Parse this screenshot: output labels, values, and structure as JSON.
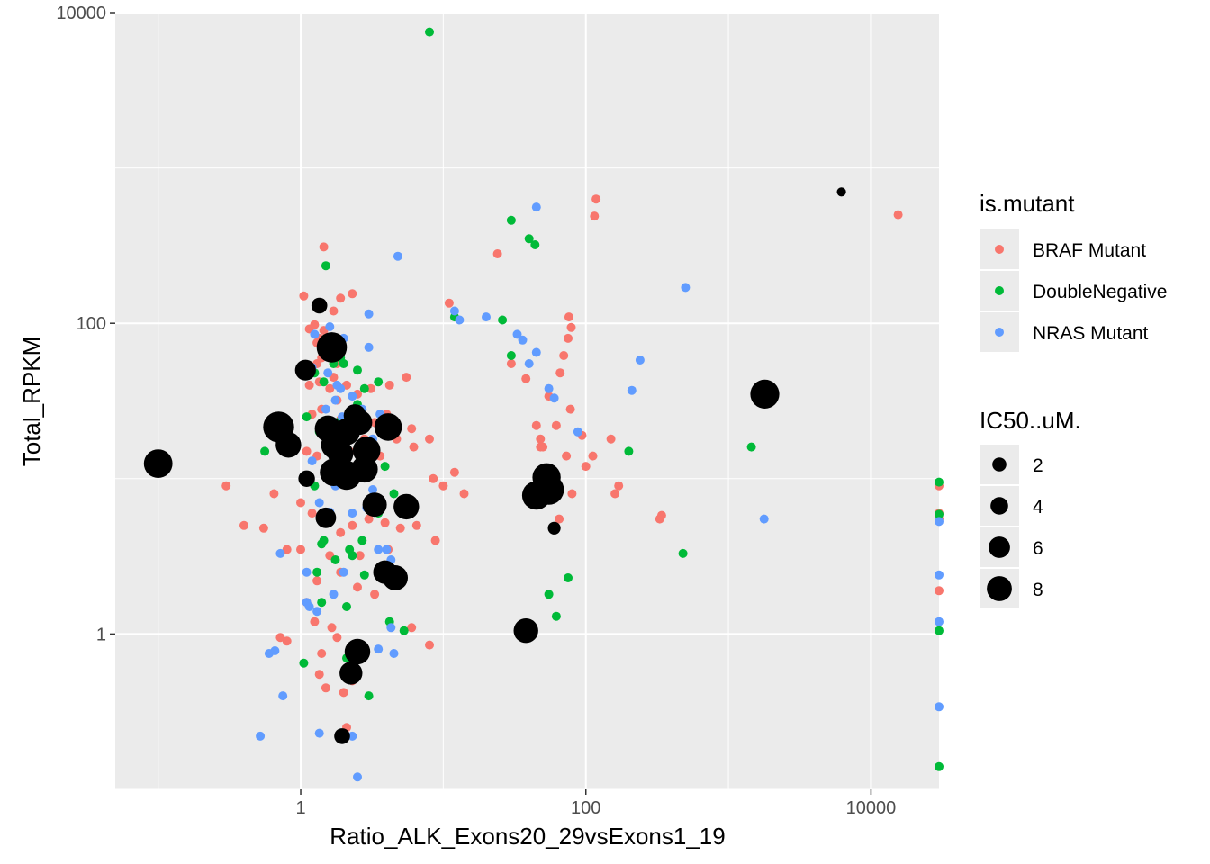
{
  "chart_data": {
    "type": "scatter",
    "xlabel": "Ratio_ALK_Exons20_29vsExons1_19",
    "ylabel": "Total_RPKM",
    "x_scale": "log10",
    "y_scale": "log10",
    "xlim": [
      0.05,
      30000
    ],
    "ylim": [
      0.1,
      10000
    ],
    "x_ticks": [
      1,
      100,
      10000
    ],
    "x_tick_labels": [
      "1",
      "100",
      "10000"
    ],
    "y_ticks": [
      1,
      100,
      10000
    ],
    "y_tick_labels": [
      "1",
      "100",
      "10000"
    ],
    "grid": true,
    "panel_background": "#ebebeb",
    "legend_position": "right",
    "colors": {
      "BRAF Mutant": "#f8766d",
      "DoubleNegative": "#00ba38",
      "NRAS Mutant": "#619cff",
      "IC50": "#000000"
    },
    "legend": {
      "color_title": "is.mutant",
      "color_entries": [
        "BRAF Mutant",
        "DoubleNegative",
        "NRAS Mutant"
      ],
      "size_title": "IC50..uM.",
      "size_entries": [
        2,
        4,
        6,
        8
      ]
    },
    "series": [
      {
        "name": "BRAF Mutant",
        "points": [
          [
            1.45,
            310
          ],
          [
            1.35,
            80
          ],
          [
            1.05,
            150
          ],
          [
            1.3,
            55
          ],
          [
            1.6,
            70
          ],
          [
            1.9,
            145
          ],
          [
            2.3,
            155
          ],
          [
            1.15,
            40
          ],
          [
            1.35,
            42
          ],
          [
            1.7,
            45
          ],
          [
            2.1,
            40
          ],
          [
            2.5,
            35
          ],
          [
            3.1,
            38
          ],
          [
            4.2,
            40
          ],
          [
            5.5,
            45
          ],
          [
            1.2,
            26
          ],
          [
            1.4,
            28
          ],
          [
            1.8,
            32
          ],
          [
            2.4,
            26
          ],
          [
            3.3,
            23
          ],
          [
            4.0,
            26
          ],
          [
            6.0,
            21
          ],
          [
            8.0,
            18
          ],
          [
            1.1,
            15
          ],
          [
            1.3,
            14
          ],
          [
            1.7,
            13
          ],
          [
            2.2,
            15
          ],
          [
            2.8,
            18
          ],
          [
            3.6,
            14
          ],
          [
            4.7,
            18
          ],
          [
            6.2,
            16
          ],
          [
            8.5,
            10
          ],
          [
            10,
            9
          ],
          [
            12,
            11
          ],
          [
            14,
            8
          ],
          [
            1.0,
            7
          ],
          [
            1.2,
            6
          ],
          [
            1.5,
            5.5
          ],
          [
            1.9,
            4.5
          ],
          [
            2.3,
            5
          ],
          [
            3.0,
            5.5
          ],
          [
            3.9,
            5.2
          ],
          [
            5.0,
            4.8
          ],
          [
            6.5,
            5
          ],
          [
            8.8,
            4
          ],
          [
            0.3,
            9
          ],
          [
            0.4,
            5
          ],
          [
            0.55,
            4.8
          ],
          [
            0.65,
            8
          ],
          [
            0.8,
            3.5
          ],
          [
            1.0,
            3.5
          ],
          [
            1.3,
            2.2
          ],
          [
            1.6,
            3.2
          ],
          [
            1.9,
            2.5
          ],
          [
            2.6,
            3.2
          ],
          [
            3.5,
            2.5
          ],
          [
            4.1,
            3.5
          ],
          [
            1.1,
            1.6
          ],
          [
            1.25,
            1.2
          ],
          [
            1.8,
            0.95
          ],
          [
            0.72,
            0.95
          ],
          [
            0.8,
            0.9
          ],
          [
            1.4,
            0.75
          ],
          [
            1.65,
            1.1
          ],
          [
            2.5,
            2.0
          ],
          [
            3.3,
            1.8
          ],
          [
            4.8,
            2.2
          ],
          [
            6.0,
            1.1
          ],
          [
            8.0,
            0.85
          ],
          [
            1.35,
            0.55
          ],
          [
            2.0,
            0.42
          ],
          [
            2.1,
            0.25
          ],
          [
            2.3,
            0.5
          ],
          [
            1.5,
            0.45
          ],
          [
            11,
            135
          ],
          [
            24,
            280
          ],
          [
            30,
            55
          ],
          [
            38,
            44
          ],
          [
            45,
            22
          ],
          [
            48,
            18
          ],
          [
            50,
            16
          ],
          [
            55,
            34
          ],
          [
            62,
            22
          ],
          [
            66,
            48
          ],
          [
            70,
            62
          ],
          [
            75,
            80
          ],
          [
            80,
            8
          ],
          [
            94,
            19
          ],
          [
            100,
            12
          ],
          [
            112,
            14
          ],
          [
            76,
            110
          ],
          [
            79,
            94
          ],
          [
            78,
            28
          ],
          [
            65,
            5.5
          ],
          [
            73,
            14
          ],
          [
            48,
            16
          ],
          [
            150,
            18
          ],
          [
            160,
            8
          ],
          [
            170,
            9
          ],
          [
            115,
            490
          ],
          [
            118,
            630
          ],
          [
            330,
            5.5
          ],
          [
            340,
            5.8
          ],
          [
            15500,
            500
          ],
          [
            30000,
            9
          ],
          [
            30000,
            6
          ],
          [
            30000,
            5.5
          ],
          [
            30000,
            1.9
          ],
          [
            1.45,
            90
          ],
          [
            1.3,
            75
          ],
          [
            1.7,
            120
          ],
          [
            1.9,
            24
          ],
          [
            2.4,
            11
          ],
          [
            1.15,
            92
          ],
          [
            1.25,
            98
          ],
          [
            1.4,
            60
          ],
          [
            1.6,
            38
          ],
          [
            1.8,
            55
          ],
          [
            2.2,
            22
          ]
        ]
      },
      {
        "name": "DoubleNegative",
        "points": [
          [
            8,
            7500
          ],
          [
            30,
            460
          ],
          [
            44,
            320
          ],
          [
            1.5,
            235
          ],
          [
            1.25,
            48
          ],
          [
            1.45,
            42
          ],
          [
            1.7,
            55
          ],
          [
            1.9,
            60
          ],
          [
            2.5,
            50
          ],
          [
            2.8,
            38
          ],
          [
            3.5,
            42
          ],
          [
            1.35,
            20
          ],
          [
            1.6,
            22
          ],
          [
            1.9,
            17
          ],
          [
            2.2,
            22
          ],
          [
            2.6,
            13
          ],
          [
            3.1,
            13
          ],
          [
            3.9,
            12
          ],
          [
            1.1,
            25
          ],
          [
            1.25,
            9
          ],
          [
            1.45,
            4
          ],
          [
            1.75,
            3
          ],
          [
            2.2,
            3.5
          ],
          [
            2.7,
            4
          ],
          [
            3.5,
            6
          ],
          [
            4.5,
            8
          ],
          [
            1.4,
            3.8
          ],
          [
            1.3,
            2.5
          ],
          [
            1.05,
            0.65
          ],
          [
            1.4,
            1.6
          ],
          [
            2.1,
            1.5
          ],
          [
            2.3,
            3.2
          ],
          [
            2.8,
            2.4
          ],
          [
            3.5,
            2.5
          ],
          [
            4.2,
            1.2
          ],
          [
            5.3,
            1.05
          ],
          [
            12,
            110
          ],
          [
            26,
            105
          ],
          [
            30,
            62
          ],
          [
            40,
            350
          ],
          [
            45,
            7.8
          ],
          [
            55,
            1.8
          ],
          [
            62,
            1.3
          ],
          [
            75,
            2.3
          ],
          [
            200,
            15
          ],
          [
            480,
            3.3
          ],
          [
            1450,
            16
          ],
          [
            30000,
            9.5
          ],
          [
            30000,
            5.9
          ],
          [
            30000,
            1.05
          ],
          [
            30000,
            0.14
          ],
          [
            2.0,
            55
          ],
          [
            2.5,
            30
          ],
          [
            3.0,
            12
          ],
          [
            1.8,
            23
          ],
          [
            3.0,
            0.4
          ],
          [
            2.1,
            0.7
          ],
          [
            2.7,
            17
          ],
          [
            0.56,
            15
          ],
          [
            1.55,
            21
          ]
        ]
      },
      {
        "name": "NRAS Mutant",
        "points": [
          [
            45,
            560
          ],
          [
            4.8,
            270
          ],
          [
            3.0,
            115
          ],
          [
            1.25,
            85
          ],
          [
            1.6,
            95
          ],
          [
            2.0,
            80
          ],
          [
            3.0,
            70
          ],
          [
            1.45,
            65
          ],
          [
            1.8,
            40
          ],
          [
            2.3,
            34
          ],
          [
            2.7,
            28
          ],
          [
            1.2,
            52
          ],
          [
            1.55,
            48
          ],
          [
            1.9,
            38
          ],
          [
            2.3,
            22
          ],
          [
            3.2,
            18
          ],
          [
            3.6,
            26
          ],
          [
            1.5,
            28
          ],
          [
            1.95,
            25
          ],
          [
            1.75,
            9
          ],
          [
            2.3,
            6
          ],
          [
            2.9,
            6.5
          ],
          [
            2.5,
            12
          ],
          [
            3.0,
            13
          ],
          [
            1.7,
            1.8
          ],
          [
            2.0,
            2.5
          ],
          [
            3.5,
            3.5
          ],
          [
            4.3,
            1.1
          ],
          [
            1.1,
            1.6
          ],
          [
            1.15,
            1.5
          ],
          [
            1.3,
            1.4
          ],
          [
            0.6,
            0.75
          ],
          [
            0.66,
            0.78
          ],
          [
            0.75,
            0.4
          ],
          [
            0.52,
            0.22
          ],
          [
            1.35,
            0.23
          ],
          [
            2.3,
            0.22
          ],
          [
            2.5,
            0.12
          ],
          [
            3.5,
            0.8
          ],
          [
            4.0,
            3.5
          ],
          [
            4.5,
            0.75
          ],
          [
            12,
            120
          ],
          [
            13,
            105
          ],
          [
            20,
            110
          ],
          [
            33,
            85
          ],
          [
            36,
            78
          ],
          [
            40,
            55
          ],
          [
            45,
            65
          ],
          [
            55,
            38
          ],
          [
            60,
            33
          ],
          [
            88,
            20
          ],
          [
            240,
            58
          ],
          [
            210,
            37
          ],
          [
            500,
            170
          ],
          [
            1780,
            5.5
          ],
          [
            30000,
            5.3
          ],
          [
            30000,
            2.4
          ],
          [
            30000,
            1.2
          ],
          [
            30000,
            0.34
          ],
          [
            0.72,
            3.3
          ],
          [
            1.1,
            2.5
          ],
          [
            1.4,
            5.3
          ],
          [
            1.6,
            6.1
          ],
          [
            1.2,
            13
          ],
          [
            1.35,
            7
          ],
          [
            1.75,
            32
          ],
          [
            2.4,
            27
          ],
          [
            3.2,
            8.5
          ],
          [
            4.3,
            3.0
          ]
        ]
      },
      {
        "name": "IC50",
        "points": [
          [
            0.1,
            12.5,
            5.3
          ],
          [
            0.7,
            21.5,
            5.9
          ],
          [
            0.82,
            16.5,
            4.5
          ],
          [
            1.08,
            50,
            3.3
          ],
          [
            1.35,
            130,
            2.0
          ],
          [
            1.65,
            70,
            5.7
          ],
          [
            1.55,
            21,
            4.7
          ],
          [
            1.75,
            16.5,
            5.3
          ],
          [
            1.7,
            11,
            5.0
          ],
          [
            1.5,
            5.6,
            3.2
          ],
          [
            2.4,
            25.5,
            3.7
          ],
          [
            2.1,
            20,
            4.8
          ],
          [
            1.9,
            14.5,
            4.5
          ],
          [
            2.6,
            23,
            4.3
          ],
          [
            2.9,
            15.2,
            5.0
          ],
          [
            2.1,
            10.5,
            5.4
          ],
          [
            2.8,
            11.5,
            4.8
          ],
          [
            4.1,
            21.5,
            5.0
          ],
          [
            3.3,
            6.8,
            4.2
          ],
          [
            3.9,
            2.5,
            4.0
          ],
          [
            4.6,
            2.3,
            4.4
          ],
          [
            1.1,
            10,
            2.2
          ],
          [
            2.5,
            0.77,
            4.5
          ],
          [
            2.25,
            0.56,
            3.8
          ],
          [
            1.95,
            0.22,
            2.0
          ],
          [
            5.5,
            6.6,
            4.5
          ],
          [
            38,
            1.05,
            4.3
          ],
          [
            45,
            7.8,
            5.3
          ],
          [
            55,
            8.5,
            5.7
          ],
          [
            53,
            10.2,
            5.2
          ],
          [
            60,
            4.8,
            1.2
          ],
          [
            1800,
            35,
            5.4
          ],
          [
            6200,
            700,
            0.3
          ]
        ]
      }
    ]
  }
}
